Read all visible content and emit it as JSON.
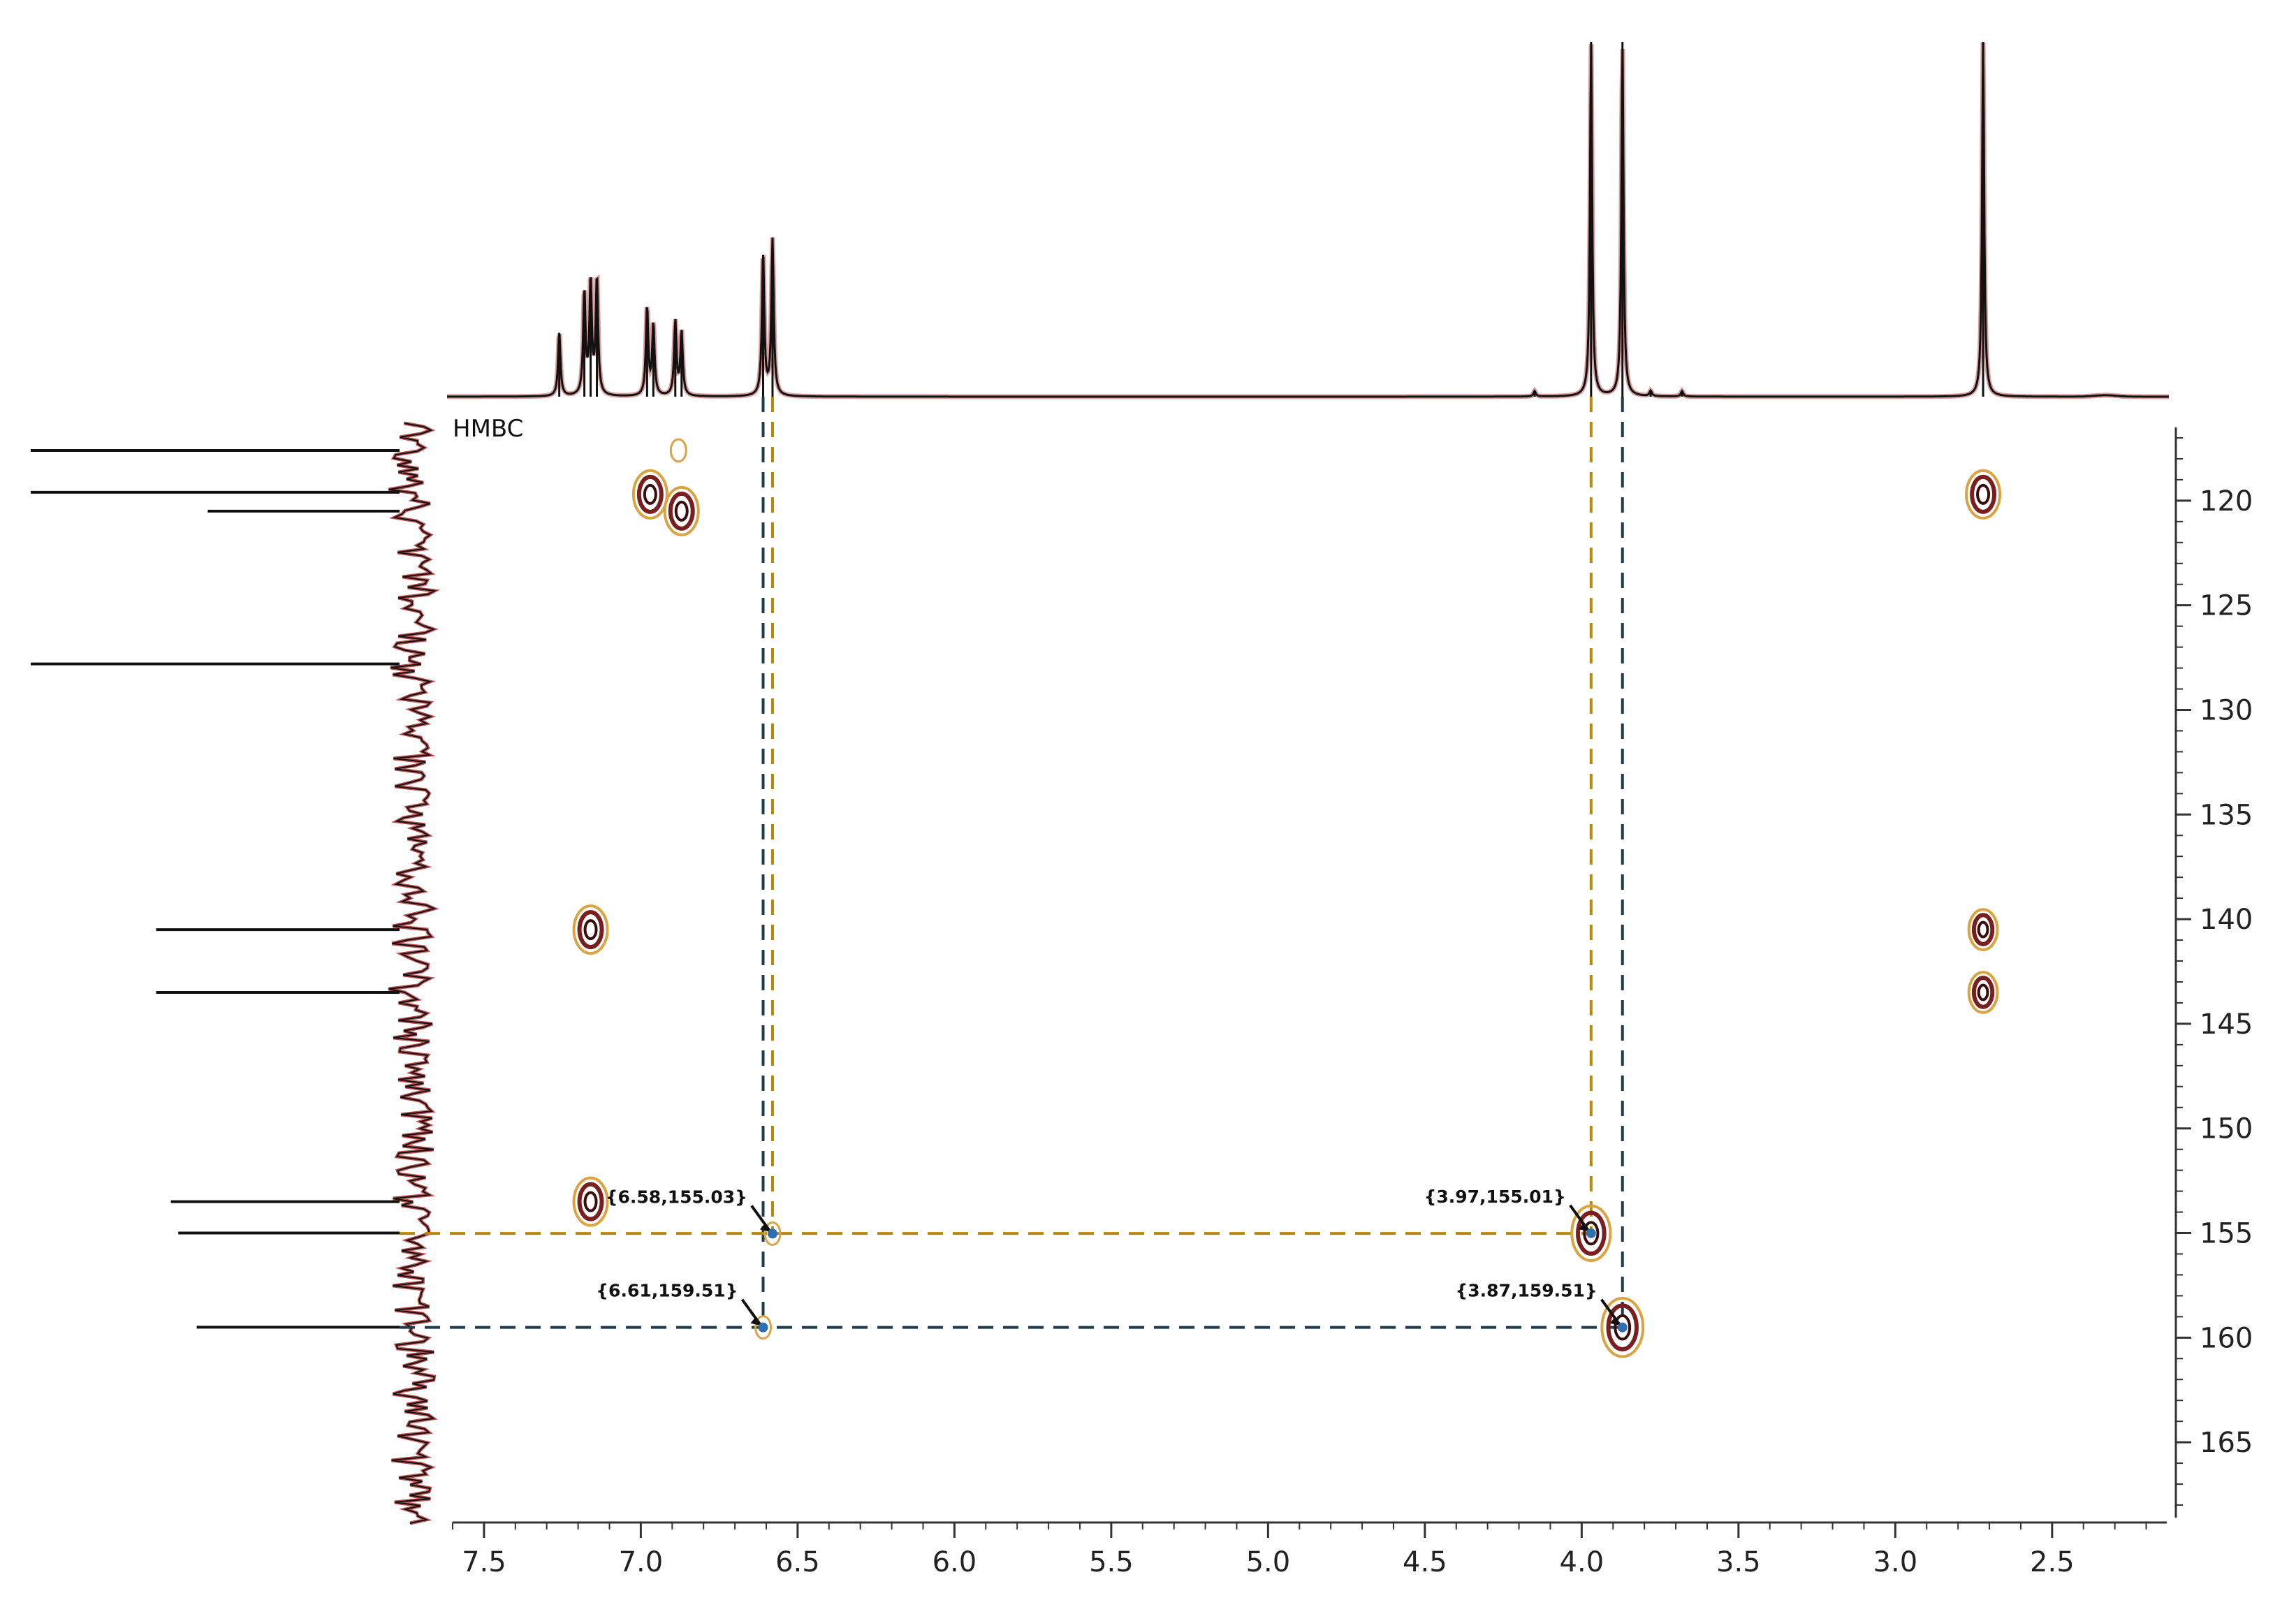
{
  "chart_data": {
    "type": "scatter",
    "title": "HMBC",
    "xlabel": "",
    "ylabel": "",
    "x_axis": {
      "range": [
        7.6,
        2.15
      ],
      "reversed": true,
      "ticks": [
        7.5,
        7.0,
        6.5,
        6.0,
        5.5,
        5.0,
        4.5,
        4.0,
        3.5,
        3.0,
        2.5
      ],
      "tick_labels": [
        "7.5",
        "7.0",
        "6.5",
        "6.0",
        "5.5",
        "5.0",
        "4.5",
        "4.0",
        "3.5",
        "3.0",
        "2.5"
      ]
    },
    "y_axis": {
      "range": [
        116.5,
        168.5
      ],
      "reversed": true,
      "position": "right",
      "ticks": [
        120,
        125,
        130,
        135,
        140,
        145,
        150,
        155,
        160,
        165
      ],
      "tick_labels": [
        "120",
        "125",
        "130",
        "135",
        "140",
        "145",
        "150",
        "155",
        "160",
        "165"
      ]
    },
    "grid": false,
    "cross_peaks": [
      {
        "x": 6.88,
        "y": 117.6,
        "strength": 0.3
      },
      {
        "x": 6.97,
        "y": 119.7,
        "strength": 1.0
      },
      {
        "x": 6.87,
        "y": 120.5,
        "strength": 1.0
      },
      {
        "x": 2.72,
        "y": 119.7,
        "strength": 1.0
      },
      {
        "x": 7.16,
        "y": 140.5,
        "strength": 1.0
      },
      {
        "x": 2.72,
        "y": 140.5,
        "strength": 0.8
      },
      {
        "x": 2.72,
        "y": 143.5,
        "strength": 0.8
      },
      {
        "x": 7.16,
        "y": 153.5,
        "strength": 1.0
      },
      {
        "x": 3.97,
        "y": 155.01,
        "strength": 1.2
      },
      {
        "x": 3.87,
        "y": 159.51,
        "strength": 1.3
      },
      {
        "x": 6.58,
        "y": 155.03,
        "strength": 0.2
      },
      {
        "x": 6.61,
        "y": 159.51,
        "strength": 0.3
      }
    ],
    "annotations": [
      {
        "label": "{6.58,155.03}",
        "x": 6.58,
        "y": 155.03,
        "color": "#b8860b"
      },
      {
        "label": "{3.97,155.01}",
        "x": 3.97,
        "y": 155.01,
        "color": "#b8860b"
      },
      {
        "label": "{6.61,159.51}",
        "x": 6.61,
        "y": 159.51,
        "color": "#1f3b4d"
      },
      {
        "label": "{3.87,159.51}",
        "x": 3.87,
        "y": 159.51,
        "color": "#1f3b4d"
      }
    ],
    "proton_spectrum_peaks": [
      {
        "ppm": 7.26,
        "height": 0.18
      },
      {
        "ppm": 7.18,
        "height": 0.29
      },
      {
        "ppm": 7.16,
        "height": 0.32
      },
      {
        "ppm": 7.14,
        "height": 0.33
      },
      {
        "ppm": 6.98,
        "height": 0.25
      },
      {
        "ppm": 6.96,
        "height": 0.2
      },
      {
        "ppm": 6.89,
        "height": 0.21
      },
      {
        "ppm": 6.87,
        "height": 0.18
      },
      {
        "ppm": 6.61,
        "height": 0.4
      },
      {
        "ppm": 6.58,
        "height": 0.44
      },
      {
        "ppm": 4.15,
        "height": 0.015
      },
      {
        "ppm": 3.97,
        "height": 1.0
      },
      {
        "ppm": 3.87,
        "height": 1.0
      },
      {
        "ppm": 3.78,
        "height": 0.015
      },
      {
        "ppm": 3.68,
        "height": 0.015
      },
      {
        "ppm": 2.72,
        "height": 1.0
      }
    ],
    "carbon_spectrum_peaks": [
      {
        "ppm": 117.6,
        "height": 1.0
      },
      {
        "ppm": 119.6,
        "height": 1.0
      },
      {
        "ppm": 120.5,
        "height": 0.52
      },
      {
        "ppm": 127.8,
        "height": 1.0
      },
      {
        "ppm": 140.5,
        "height": 0.66
      },
      {
        "ppm": 143.5,
        "height": 0.66
      },
      {
        "ppm": 153.5,
        "height": 0.62
      },
      {
        "ppm": 155.0,
        "height": 0.6
      },
      {
        "ppm": 159.5,
        "height": 0.55
      }
    ],
    "colors": {
      "spectrum_line": "#111111",
      "spectrum_fill": "#c05050",
      "contour_inner": "#7a1f1f",
      "contour_outer": "#d9a441",
      "guide_gold": "#b8860b",
      "guide_navy": "#1f3b4d",
      "axis": "#333333"
    }
  }
}
